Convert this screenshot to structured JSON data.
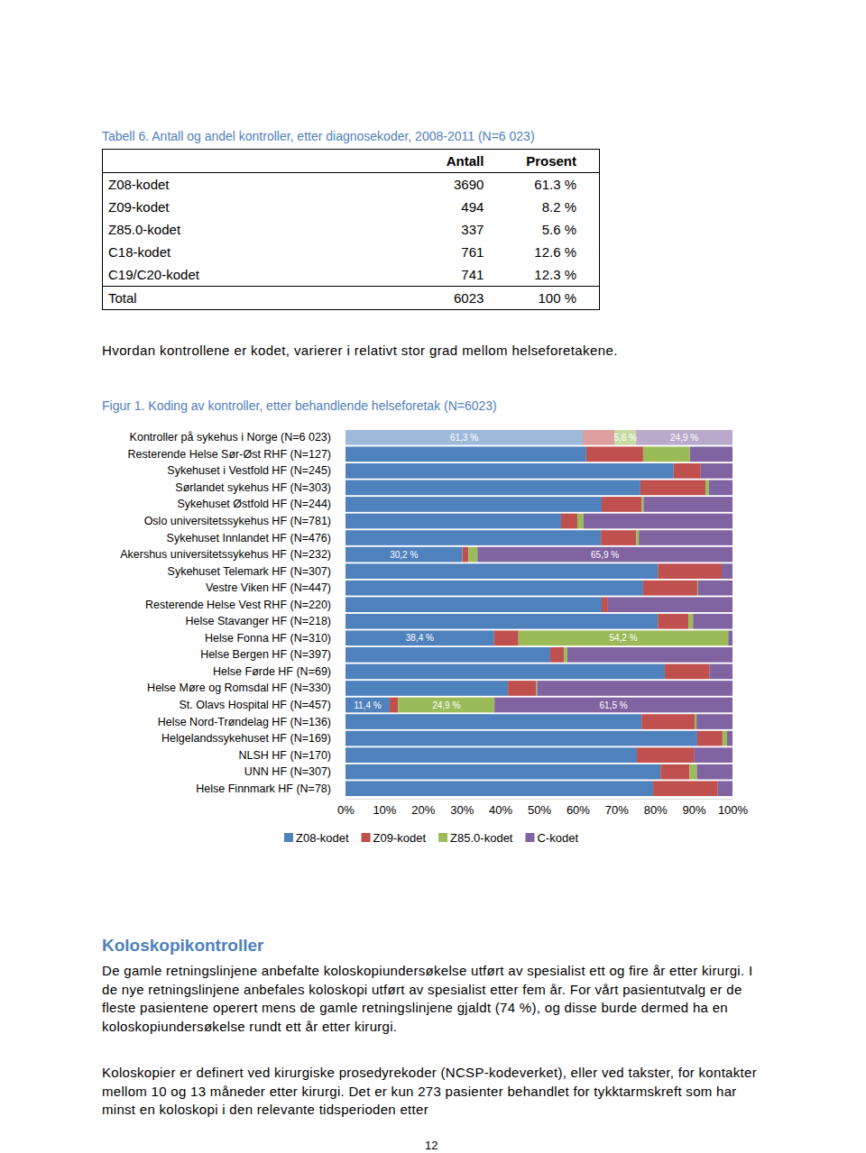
{
  "table": {
    "title": "Tabell 6. Antall og andel kontroller, etter diagnosekoder, 2008-2011 (N=6 023)",
    "header": [
      "Antall",
      "Prosent"
    ],
    "rows": [
      [
        "Z08-kodet",
        "3690",
        "61.3 %"
      ],
      [
        "Z09-kodet",
        "494",
        "8.2 %"
      ],
      [
        "Z85.0-kodet",
        "337",
        "5.6 %"
      ],
      [
        "C18-kodet",
        "761",
        "12.6 %"
      ],
      [
        "C19/C20-kodet",
        "741",
        "12.3 %"
      ],
      [
        "Total",
        "6023",
        "100 %"
      ]
    ]
  },
  "intro": "Hvordan kontrollene er kodet, varierer i relativt stor grad mellom helseforetakene.",
  "chart_data": {
    "type": "bar",
    "title": "Figur 1. Koding av kontroller, etter behandlende helseforetak (N=6023)",
    "orientation": "horizontal",
    "stacked": true,
    "legend": "bottom",
    "data_labels": true,
    "categories": [
      "Kontroller på sykehus i Norge (N=6 023)",
      "Resterende Helse Sør-Øst RHF (N=127)",
      "Sykehuset i Vestfold HF (N=245)",
      "Sørlandet sykehus HF (N=303)",
      "Sykehuset Østfold HF (N=244)",
      "Oslo universitetssykehus HF (N=781)",
      "Sykehuset Innlandet HF (N=476)",
      "Akershus universitetssykehus HF (N=232)",
      "Sykehuset Telemark HF (N=307)",
      "Vestre Viken HF (N=447)",
      "Resterende Helse Vest RHF (N=220)",
      "Helse Stavanger HF (N=218)",
      "Helse Fonna HF (N=310)",
      "Helse Bergen HF (N=397)",
      "Helse Førde HF (N=69)",
      "Helse Møre og Romsdal HF (N=330)",
      "St. Olavs Hospital HF (N=457)",
      "Helse Nord-Trøndelag HF (N=136)",
      "Helgelandssykehuset HF (N=169)",
      "NLSH HF (N=170)",
      "UNN HF (N=307)",
      "Helse Finnmark HF (N=78)"
    ],
    "xlim": [
      0,
      100
    ],
    "xticks": [
      {
        "value": 0,
        "label": "0%"
      },
      {
        "value": 10,
        "label": "10%"
      },
      {
        "value": 20,
        "label": "20%"
      },
      {
        "value": 30,
        "label": "30%"
      },
      {
        "value": 40,
        "label": "40%"
      },
      {
        "value": 50,
        "label": "50%"
      },
      {
        "value": 60,
        "label": "60%"
      },
      {
        "value": 70,
        "label": "70%"
      },
      {
        "value": 80,
        "label": "80%"
      },
      {
        "value": 90,
        "label": "90%"
      },
      {
        "value": 100,
        "label": "100%"
      }
    ],
    "series": [
      {
        "name": "Z08-kodet",
        "color": "#4f81bd",
        "values": [
          61.3,
          62.2,
          84.8,
          76.2,
          66.2,
          55.7,
          66.0,
          30.2,
          80.7,
          76.9,
          66.2,
          80.7,
          38.4,
          52.9,
          82.5,
          42.0,
          11.4,
          76.5,
          90.9,
          75.3,
          81.4,
          79.5
        ],
        "value_labels": [
          "61,3 %",
          null,
          null,
          null,
          null,
          null,
          null,
          "30,2 %",
          null,
          null,
          null,
          null,
          "38,4 %",
          null,
          null,
          null,
          "11,4 %",
          null,
          null,
          null,
          null,
          null
        ]
      },
      {
        "name": "Z09-kodet",
        "color": "#c0504d",
        "values": [
          8.2,
          14.7,
          7.0,
          16.8,
          10.3,
          4.2,
          9.1,
          1.6,
          16.5,
          14.0,
          1.6,
          7.9,
          6.3,
          3.5,
          11.6,
          7.2,
          2.2,
          13.7,
          6.5,
          14.7,
          7.5,
          16.7
        ]
      },
      {
        "name": "Z85.0-kodet",
        "color": "#9bbb59",
        "values": [
          5.6,
          12.1,
          0,
          0.9,
          0.5,
          1.6,
          0.7,
          2.3,
          0,
          0.2,
          0,
          1.2,
          54.2,
          0.9,
          0,
          0.3,
          24.9,
          0.5,
          1.2,
          0,
          1.9,
          0
        ],
        "value_labels": [
          "5,6 %",
          null,
          null,
          null,
          null,
          null,
          null,
          null,
          null,
          null,
          null,
          null,
          "54,2 %",
          null,
          null,
          null,
          "24,9 %",
          null,
          null,
          null,
          null,
          null
        ]
      },
      {
        "name": "C-kodet",
        "color": "#8064a2",
        "values": [
          24.9,
          11.0,
          8.2,
          6.1,
          23.0,
          38.5,
          24.2,
          65.9,
          2.8,
          8.9,
          32.2,
          10.2,
          1.1,
          42.7,
          5.9,
          50.5,
          61.5,
          9.3,
          1.4,
          10.0,
          9.2,
          3.8
        ],
        "value_labels": [
          "24,9 %",
          null,
          null,
          null,
          null,
          null,
          null,
          "65,9 %",
          null,
          null,
          null,
          null,
          null,
          null,
          null,
          null,
          "61,5 %",
          null,
          null,
          null,
          null,
          null
        ]
      }
    ]
  },
  "heading": "Koloskopikontroller",
  "paragraphs": [
    "De gamle retningslinjene anbefalte koloskopiundersøkelse utført av spesialist ett og fire år etter kirurgi. I de nye retningslinjene anbefales koloskopi utført av spesialist etter fem år. For vårt pasientutvalg er de fleste pasientene operert mens de gamle retningslinjene gjaldt (74 %), og disse burde dermed ha en koloskopiundersøkelse rundt ett år etter kirurgi.",
    "Koloskopier er definert ved kirurgiske prosedyrekoder (NCSP-kodeverket), eller ved takster, for kontakter mellom 10 og 13 måneder etter kirurgi. Det er kun 273 pasienter behandlet for tykktarmskreft som har minst en koloskopi i den relevante tidsperioden etter"
  ],
  "page_number": "12"
}
